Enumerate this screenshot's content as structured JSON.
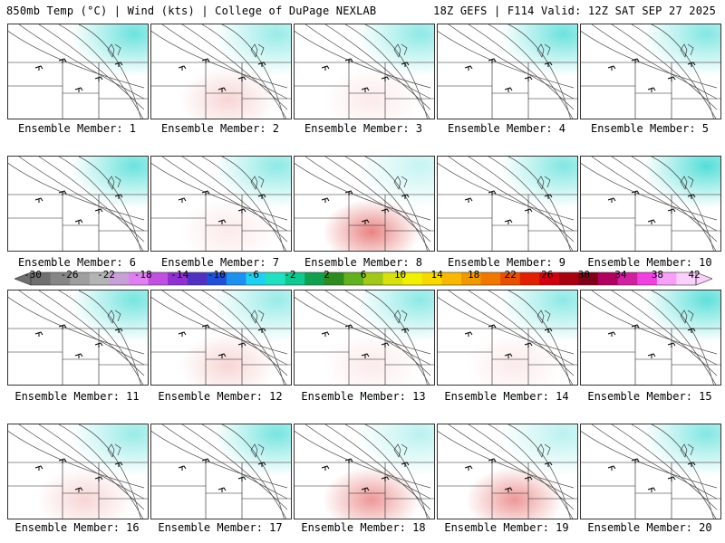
{
  "header": {
    "title_left": "850mb Temp (°C) | Wind (kts) | College of DuPage NEXLAB",
    "title_right": "18Z GEFS | F114 Valid: 12Z SAT SEP 27 2025"
  },
  "members": [
    {
      "label": "Ensemble Member: 1",
      "warmth": 0.35
    },
    {
      "label": "Ensemble Member: 2",
      "warmth": 0.55
    },
    {
      "label": "Ensemble Member: 3",
      "warmth": 0.5
    },
    {
      "label": "Ensemble Member: 4",
      "warmth": 0.35
    },
    {
      "label": "Ensemble Member: 5",
      "warmth": 0.45
    },
    {
      "label": "Ensemble Member: 6",
      "warmth": 0.35
    },
    {
      "label": "Ensemble Member: 7",
      "warmth": 0.5
    },
    {
      "label": "Ensemble Member: 8",
      "warmth": 0.75
    },
    {
      "label": "Ensemble Member: 9",
      "warmth": 0.45
    },
    {
      "label": "Ensemble Member: 10",
      "warmth": 0.25
    },
    {
      "label": "Ensemble Member: 11",
      "warmth": 0.4
    },
    {
      "label": "Ensemble Member: 12",
      "warmth": 0.55
    },
    {
      "label": "Ensemble Member: 13",
      "warmth": 0.5
    },
    {
      "label": "Ensemble Member: 14",
      "warmth": 0.5
    },
    {
      "label": "Ensemble Member: 15",
      "warmth": 0.3
    },
    {
      "label": "Ensemble Member: 16",
      "warmth": 0.55
    },
    {
      "label": "Ensemble Member: 17",
      "warmth": 0.4
    },
    {
      "label": "Ensemble Member: 18",
      "warmth": 0.7
    },
    {
      "label": "Ensemble Member: 19",
      "warmth": 0.7
    },
    {
      "label": "Ensemble Member: 20",
      "warmth": 0.45
    }
  ],
  "colorbar": {
    "ticks": [
      "-30",
      "-26",
      "-22",
      "-18",
      "-14",
      "-10",
      "-6",
      "-2",
      "2",
      "6",
      "10",
      "14",
      "18",
      "22",
      "26",
      "30",
      "34",
      "38",
      "42"
    ],
    "colors": [
      "#6f6f6f",
      "#868686",
      "#9e9e9e",
      "#b4b4b4",
      "#c8a0d8",
      "#e080f0",
      "#c050e0",
      "#9030d0",
      "#5030c0",
      "#2050d8",
      "#1e90f0",
      "#20d0f0",
      "#20e0c0",
      "#10c890",
      "#10a050",
      "#2e8b20",
      "#60b020",
      "#a0c818",
      "#d8e010",
      "#f0f000",
      "#f8d800",
      "#f8b800",
      "#f09800",
      "#f07800",
      "#e85000",
      "#e02000",
      "#d00010",
      "#a80010",
      "#800018",
      "#b00060",
      "#d020a0",
      "#f040e0",
      "#f8a0f8",
      "#fcd0fc"
    ]
  },
  "map_colors": {
    "cold": "#10d0c8",
    "cool": "#0f9a4a",
    "mild": "#6eb822",
    "warm": "#e8e010",
    "hot": "#f8a000",
    "hotter": "#f06010",
    "hottest": "#d81818"
  }
}
